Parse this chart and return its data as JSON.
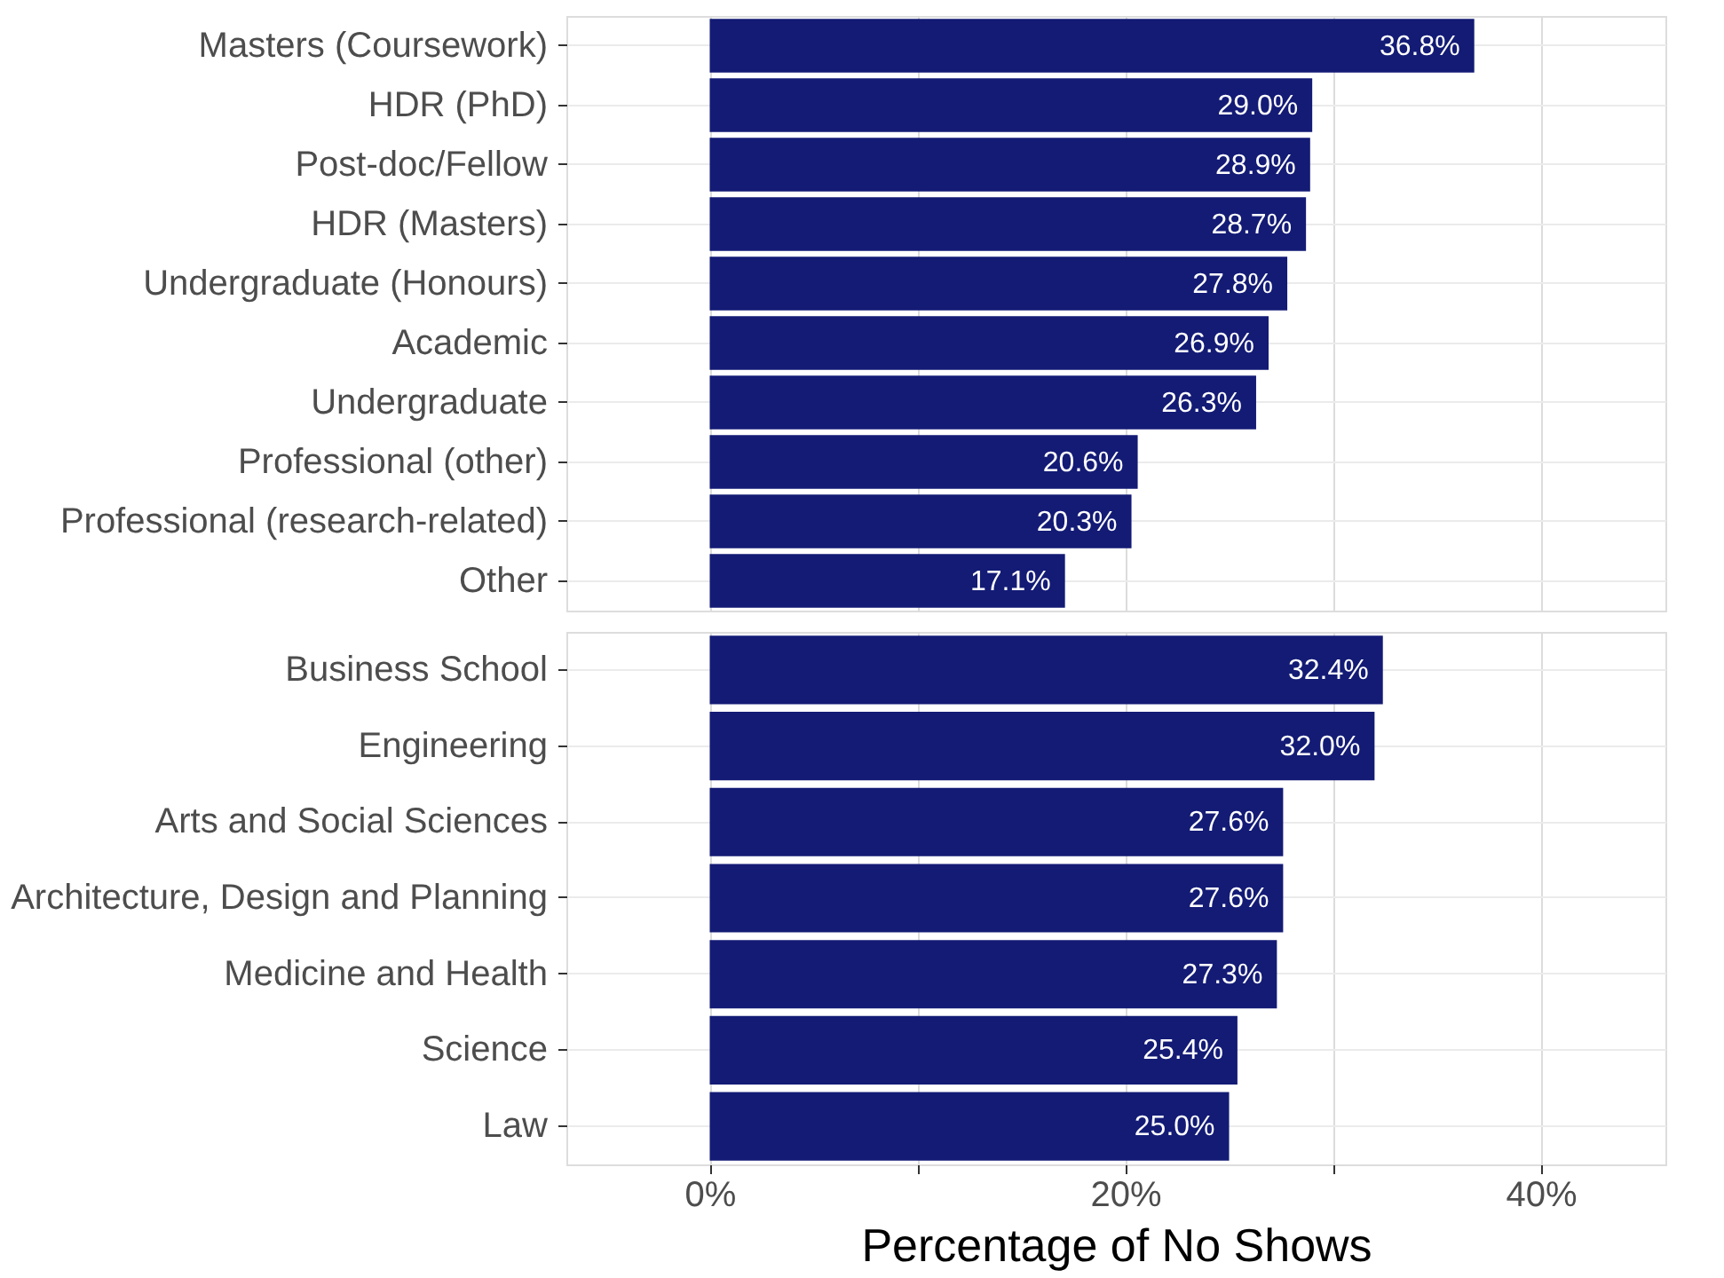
{
  "chart_data": [
    {
      "type": "bar",
      "orientation": "horizontal",
      "categories": [
        "Masters (Coursework)",
        "HDR (PhD)",
        "Post-doc/Fellow",
        "HDR (Masters)",
        "Undergraduate (Honours)",
        "Academic",
        "Undergraduate",
        "Professional (other)",
        "Professional (research-related)",
        "Other"
      ],
      "values": [
        36.8,
        29.0,
        28.9,
        28.7,
        27.8,
        26.9,
        26.3,
        20.6,
        20.3,
        17.1
      ],
      "value_labels": [
        "36.8%",
        "29.0%",
        "28.9%",
        "28.7%",
        "27.8%",
        "26.9%",
        "26.3%",
        "20.6%",
        "20.3%",
        "17.1%"
      ],
      "color": "#131b75",
      "xlim": [
        -6.9,
        46
      ],
      "xticks": [
        {
          "value": 0,
          "label": null
        },
        {
          "value": 10,
          "label": null
        },
        {
          "value": 20,
          "label": null
        },
        {
          "value": 30,
          "label": null
        },
        {
          "value": 40,
          "label": null
        }
      ],
      "grid": true,
      "tick_labels": "y"
    },
    {
      "type": "bar",
      "orientation": "horizontal",
      "categories": [
        "Business School",
        "Engineering",
        "Arts and Social Sciences",
        "Architecture, Design and Planning",
        "Medicine and Health",
        "Science",
        "Law"
      ],
      "values": [
        32.4,
        32.0,
        27.6,
        27.6,
        27.3,
        25.4,
        25.0
      ],
      "value_labels": [
        "32.4%",
        "32.0%",
        "27.6%",
        "27.6%",
        "27.3%",
        "25.4%",
        "25.0%"
      ],
      "color": "#131b75",
      "xlim": [
        -6.9,
        46
      ],
      "xticks": [
        {
          "value": 0,
          "label": "0%"
        },
        {
          "value": 10,
          "label": null
        },
        {
          "value": 20,
          "label": "20%"
        },
        {
          "value": 30,
          "label": null
        },
        {
          "value": 40,
          "label": "40%"
        }
      ],
      "xlabel": "Percentage of No Shows",
      "grid": true
    }
  ]
}
